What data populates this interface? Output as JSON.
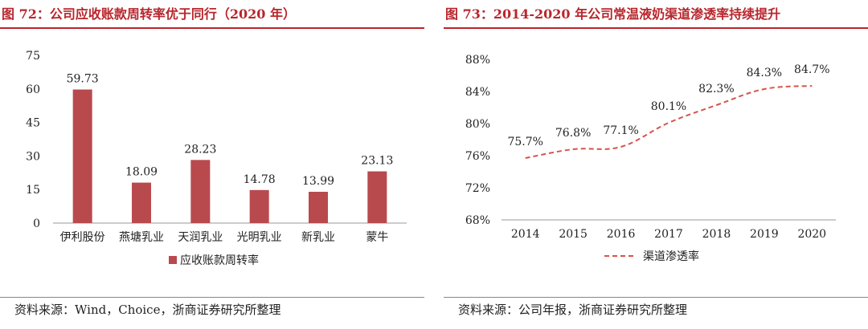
{
  "left": {
    "title": "图 72：公司应收账款周转率优于同行（2020 年）",
    "source": "资料来源：Wind，Choice，浙商证券研究所整理"
  },
  "right": {
    "title": "图 73：2014-2020 年公司常温液奶渠道渗透率持续提升",
    "source": "资料来源：公司年报，浙商证券研究所整理"
  },
  "chart_data": [
    {
      "type": "bar",
      "categories": [
        "伊利股份",
        "燕塘乳业",
        "天润乳业",
        "光明乳业",
        "新乳业",
        "蒙牛"
      ],
      "series": [
        {
          "name": "应收账款周转率",
          "values": [
            59.73,
            18.09,
            28.23,
            14.78,
            13.99,
            23.13
          ]
        }
      ],
      "ylim": [
        0,
        75
      ],
      "yticks": [
        0,
        15,
        30,
        45,
        60,
        75
      ],
      "data_labels": [
        "59.73",
        "18.09",
        "28.23",
        "14.78",
        "13.99",
        "23.13"
      ],
      "legend": "bottom",
      "color": "#b84a4e",
      "grid": false
    },
    {
      "type": "line",
      "x": [
        "2014",
        "2015",
        "2016",
        "2017",
        "2018",
        "2019",
        "2020"
      ],
      "series": [
        {
          "name": "渠道渗透率",
          "values": [
            75.7,
            76.8,
            77.1,
            80.1,
            82.3,
            84.3,
            84.7
          ]
        }
      ],
      "data_labels": [
        "75.7%",
        "76.8%",
        "77.1%",
        "80.1%",
        "82.3%",
        "84.3%",
        "84.7%"
      ],
      "ylim": [
        68,
        88
      ],
      "yticks": [
        68,
        72,
        76,
        80,
        84,
        88
      ],
      "ytick_labels": [
        "68%",
        "72%",
        "76%",
        "80%",
        "84%",
        "88%"
      ],
      "legend": "bottom",
      "line_style": "dashed",
      "color": "#d6544c",
      "grid": false
    }
  ]
}
